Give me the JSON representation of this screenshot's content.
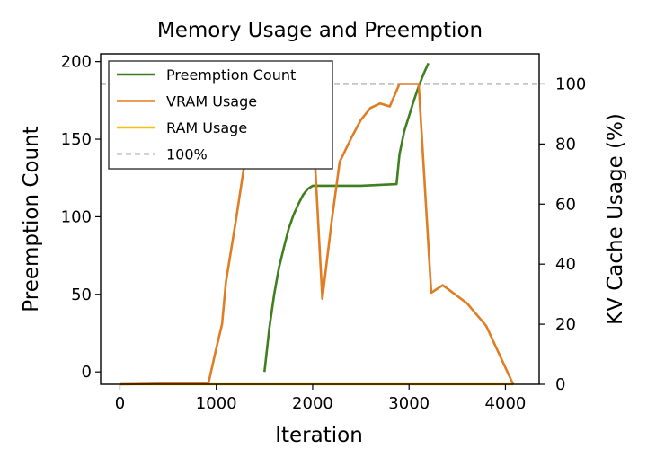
{
  "chart_data": {
    "type": "line",
    "title": "Memory Usage and Preemption",
    "xlabel": "Iteration",
    "ylabel": "Preemption Count",
    "y2label": "KV Cache Usage (%)",
    "xlim": [
      -200,
      4350
    ],
    "ylim": [
      -8,
      205
    ],
    "y2lim": [
      0,
      110
    ],
    "xticks": [
      0,
      1000,
      2000,
      3000,
      4000
    ],
    "yticks": [
      0,
      50,
      100,
      150,
      200
    ],
    "y2ticks": [
      0,
      20,
      40,
      60,
      80,
      100
    ],
    "grid": false,
    "legend_position": "upper-left",
    "series": [
      {
        "name": "Preemption Count",
        "axis": "left",
        "color": "#3f7f1f",
        "x": [
          1500,
          1550,
          1600,
          1650,
          1700,
          1750,
          1800,
          1850,
          1900,
          1950,
          2000,
          2500,
          2870,
          2900,
          2950,
          3000,
          3050,
          3100,
          3150,
          3200
        ],
        "y": [
          0,
          28,
          50,
          67,
          80,
          92,
          101,
          108,
          114,
          118,
          120,
          120,
          121,
          140,
          155,
          165,
          175,
          184,
          192,
          199
        ]
      },
      {
        "name": "VRAM Usage",
        "axis": "right",
        "color": "#e07d23",
        "x": [
          0,
          920,
          1000,
          1060,
          1100,
          1200,
          1300,
          1400,
          1500,
          1550,
          1700,
          1980,
          2100,
          2200,
          2280,
          2400,
          2500,
          2600,
          2700,
          2800,
          2900,
          3000,
          3100,
          3230,
          3350,
          3600,
          3800,
          4080
        ],
        "y": [
          0,
          0.5,
          12,
          20,
          34,
          54,
          75,
          94,
          100,
          100,
          100,
          100,
          28.5,
          55,
          74,
          82,
          88,
          92,
          93.5,
          92.5,
          100,
          100,
          100,
          30.5,
          33,
          27,
          19.5,
          0
        ]
      },
      {
        "name": "RAM Usage",
        "axis": "right",
        "color": "#f2c019",
        "x": [
          0,
          4080
        ],
        "y": [
          0,
          0
        ]
      },
      {
        "name": "100%",
        "axis": "right",
        "color": "#888888",
        "dashed": true,
        "y": [
          100
        ]
      }
    ]
  }
}
